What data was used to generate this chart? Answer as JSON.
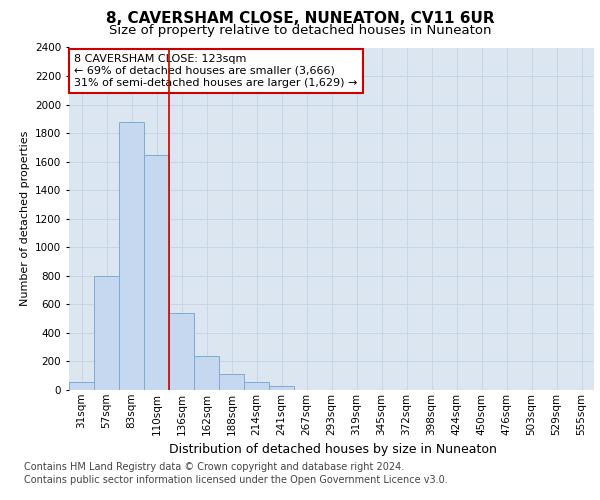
{
  "title": "8, CAVERSHAM CLOSE, NUNEATON, CV11 6UR",
  "subtitle": "Size of property relative to detached houses in Nuneaton",
  "xlabel": "Distribution of detached houses by size in Nuneaton",
  "ylabel": "Number of detached properties",
  "categories": [
    "31sqm",
    "57sqm",
    "83sqm",
    "110sqm",
    "136sqm",
    "162sqm",
    "188sqm",
    "214sqm",
    "241sqm",
    "267sqm",
    "293sqm",
    "319sqm",
    "345sqm",
    "372sqm",
    "398sqm",
    "424sqm",
    "450sqm",
    "476sqm",
    "503sqm",
    "529sqm",
    "555sqm"
  ],
  "values": [
    55,
    800,
    1880,
    1650,
    540,
    235,
    110,
    55,
    30,
    0,
    0,
    0,
    0,
    0,
    0,
    0,
    0,
    0,
    0,
    0,
    0
  ],
  "bar_color": "#c5d8ef",
  "bar_edge_color": "#7aadd4",
  "vline_color": "#cc0000",
  "vline_x_index": 3.5,
  "annotation_text": "8 CAVERSHAM CLOSE: 123sqm\n← 69% of detached houses are smaller (3,666)\n31% of semi-detached houses are larger (1,629) →",
  "annotation_box_facecolor": "white",
  "annotation_box_edgecolor": "#cc0000",
  "ylim": [
    0,
    2400
  ],
  "yticks": [
    0,
    200,
    400,
    600,
    800,
    1000,
    1200,
    1400,
    1600,
    1800,
    2000,
    2200,
    2400
  ],
  "grid_color": "#c8d4e8",
  "background_color": "#dce6f0",
  "footer_line1": "Contains HM Land Registry data © Crown copyright and database right 2024.",
  "footer_line2": "Contains public sector information licensed under the Open Government Licence v3.0.",
  "title_fontsize": 11,
  "subtitle_fontsize": 9.5,
  "xlabel_fontsize": 9,
  "ylabel_fontsize": 8,
  "tick_fontsize": 7.5,
  "annot_fontsize": 8,
  "footer_fontsize": 7
}
